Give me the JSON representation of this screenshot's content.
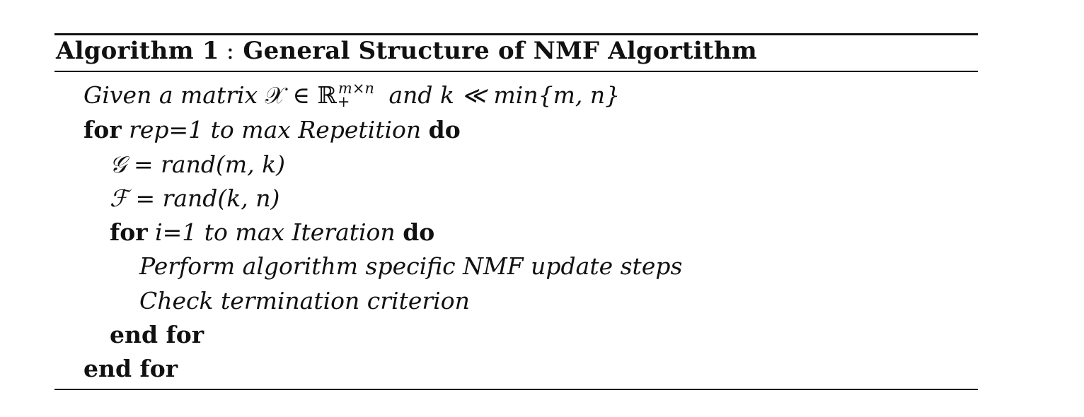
{
  "caption": {
    "label": "Algorithm 1",
    "separator": ":",
    "title": "General Structure of NMF Algortithm"
  },
  "lines": {
    "given": {
      "prefix": "Given a matrix ",
      "matrix_symbol": "𝒳",
      "member": " ∈ ",
      "real": "ℝ",
      "sup_top": "m×n",
      "sup_bottom": "+",
      "and_text": " and k ≪ min",
      "set": "{m, n}"
    },
    "for_rep": {
      "keyword": "for",
      "range": "rep=1 to max Repetition",
      "do": "do"
    },
    "init_g": {
      "symbol": "𝒢",
      "eq": " = ",
      "expr": "rand(m, k)"
    },
    "init_f": {
      "symbol": "ℱ",
      "eq": " = ",
      "expr": "rand(k, n)"
    },
    "for_i": {
      "keyword": "for",
      "range": "i=1 to max Iteration",
      "do": "do"
    },
    "perform": "Perform algorithm specific NMF update steps",
    "check": "Check termination criterion",
    "end_inner": "end for",
    "end_outer": "end for"
  }
}
